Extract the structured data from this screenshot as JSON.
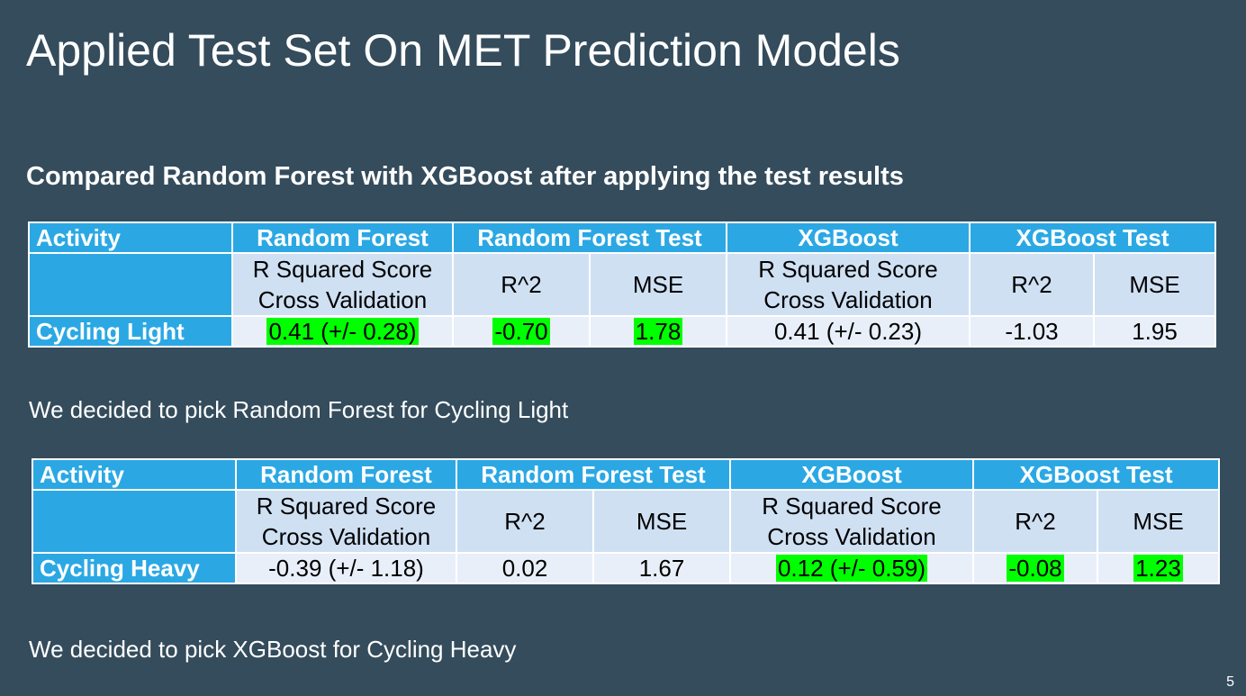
{
  "slide": {
    "title": "Applied Test Set On MET Prediction Models",
    "subtitle": "Compared Random Forest with XGBoost after applying the test results",
    "page_number": "5",
    "highlight_color": "#00ff00",
    "header_color": "#2ba8e4",
    "background_color": "#344c5c"
  },
  "tables": [
    {
      "headers": {
        "activity": "Activity",
        "rf": "Random Forest",
        "rf_test": "Random Forest Test",
        "xgb": "XGBoost",
        "xgb_test": "XGBoost Test"
      },
      "subheaders": {
        "rf_line1": "R Squared Score",
        "rf_line2": "Cross Validation",
        "rf_test_r2": "R^2",
        "rf_test_mse": "MSE",
        "xgb_line1": "R Squared Score",
        "xgb_line2": "Cross Validation",
        "xgb_test_r2": "R^2",
        "xgb_test_mse": "MSE"
      },
      "row": {
        "activity": "Cycling Light",
        "rf_cv": "0.41 (+/- 0.28)",
        "rf_r2": "-0.70",
        "rf_mse": "1.78",
        "xgb_cv": "0.41 (+/- 0.23)",
        "xgb_r2": "-1.03",
        "xgb_mse": "1.95",
        "highlighted": "Random Forest"
      },
      "conclusion": "We decided to pick Random Forest for Cycling Light"
    },
    {
      "headers": {
        "activity": "Activity",
        "rf": "Random Forest",
        "rf_test": "Random Forest Test",
        "xgb": "XGBoost",
        "xgb_test": "XGBoost Test"
      },
      "subheaders": {
        "rf_line1": "R Squared Score",
        "rf_line2": "Cross Validation",
        "rf_test_r2": "R^2",
        "rf_test_mse": "MSE",
        "xgb_line1": "R Squared Score",
        "xgb_line2": "Cross Validation",
        "xgb_test_r2": "R^2",
        "xgb_test_mse": "MSE"
      },
      "row": {
        "activity": "Cycling Heavy",
        "rf_cv": "-0.39 (+/- 1.18)",
        "rf_r2": "0.02",
        "rf_mse": "1.67",
        "xgb_cv": "0.12 (+/- 0.59)",
        "xgb_r2": "-0.08",
        "xgb_mse": "1.23",
        "highlighted": "XGBoost"
      },
      "conclusion": "We decided to pick XGBoost for Cycling Heavy"
    }
  ]
}
